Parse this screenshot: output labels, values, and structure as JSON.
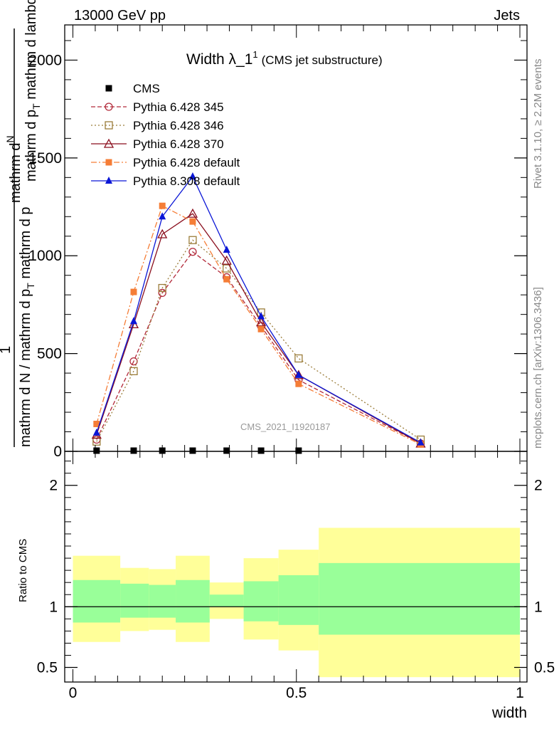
{
  "header": {
    "left": "13000 GeV pp",
    "right": "Jets"
  },
  "side_text": {
    "rivet": "Rivet 3.1.10, ≥ 2.2M events",
    "mcplots": "mcplots.cern.ch [arXiv:1306.3436]"
  },
  "chart_data": [
    {
      "type": "line",
      "title_main": "Width λ_1",
      "title_sup": "1",
      "title_sub": "(CMS jet substructure)",
      "ylabel_num_top": "mathrm d",
      "ylabel_num_N": "N",
      "ylabel_num_den": "mathrm d p",
      "ylabel_num_T": "T",
      "ylabel_num_tail": " mathrm d lambda",
      "ylabel_one": "1",
      "ylabel_den": "mathrm d N / mathrm d p",
      "ylabel_den_tail": " mathrm d p",
      "ylabel_den_T": "T",
      "watermark": "CMS_2021_I1920187",
      "xlim": [
        0,
        1
      ],
      "ylim": [
        0,
        2000
      ],
      "y_ticks": [
        0,
        500,
        1000,
        1500,
        2000
      ],
      "y_tick_labels": [
        "0",
        "500",
        "1000",
        "1500",
        "2000"
      ],
      "cms": {
        "name": "CMS",
        "color": "#000000",
        "x": [
          0.053,
          0.136,
          0.2,
          0.268,
          0.344,
          0.421,
          0.505
        ],
        "y": [
          0,
          0,
          0,
          0,
          0,
          0,
          0
        ]
      },
      "series": [
        {
          "name": "Pythia 6.428 345",
          "color": "#b22a3a",
          "dash": "6,3",
          "marker": "circle-open",
          "x": [
            0.053,
            0.136,
            0.2,
            0.268,
            0.344,
            0.421,
            0.505,
            0.778
          ],
          "y": [
            60,
            460,
            810,
            1020,
            890,
            640,
            365,
            40
          ]
        },
        {
          "name": "Pythia 6.428 346",
          "color": "#9b7d3a",
          "dash": "2,3",
          "marker": "square-open",
          "x": [
            0.053,
            0.136,
            0.2,
            0.268,
            0.344,
            0.421,
            0.505,
            0.778
          ],
          "y": [
            50,
            410,
            835,
            1080,
            935,
            710,
            475,
            60
          ]
        },
        {
          "name": "Pythia 6.428 370",
          "color": "#8b0f1e",
          "dash": "",
          "marker": "triangle-open",
          "x": [
            0.053,
            0.136,
            0.2,
            0.268,
            0.344,
            0.421,
            0.505,
            0.778
          ],
          "y": [
            85,
            650,
            1110,
            1215,
            975,
            660,
            390,
            40
          ]
        },
        {
          "name": "Pythia 6.428 default",
          "color": "#f57d36",
          "dash": "8,3,2,3",
          "marker": "square-filled",
          "x": [
            0.053,
            0.136,
            0.2,
            0.268,
            0.344,
            0.421,
            0.505,
            0.778
          ],
          "y": [
            140,
            815,
            1255,
            1175,
            880,
            625,
            345,
            35
          ]
        },
        {
          "name": "Pythia 8.308 default",
          "color": "#0a16d6",
          "dash": "",
          "marker": "triangle-filled",
          "x": [
            0.053,
            0.136,
            0.2,
            0.268,
            0.344,
            0.421,
            0.505,
            0.778
          ],
          "y": [
            95,
            665,
            1200,
            1405,
            1030,
            690,
            390,
            45
          ]
        }
      ]
    },
    {
      "type": "area",
      "ylabel": "Ratio to CMS",
      "xlabel": "width",
      "xlim": [
        0,
        1
      ],
      "ylim": [
        0.38,
        2.28
      ],
      "x_ticks": [
        0,
        0.5,
        1
      ],
      "x_tick_labels": [
        "0",
        "0.5",
        "1"
      ],
      "y_ticks": [
        0.5,
        1,
        2
      ],
      "y_tick_labels": [
        "0.5",
        "1",
        "2"
      ],
      "reference_line": 1,
      "bands": [
        {
          "x0": 0.0,
          "x1": 0.106,
          "yellow": [
            0.71,
            1.42
          ],
          "green": [
            0.87,
            1.22
          ]
        },
        {
          "x0": 0.106,
          "x1": 0.17,
          "yellow": [
            0.8,
            1.32
          ],
          "green": [
            0.91,
            1.19
          ]
        },
        {
          "x0": 0.17,
          "x1": 0.23,
          "yellow": [
            0.81,
            1.31
          ],
          "green": [
            0.91,
            1.18
          ]
        },
        {
          "x0": 0.23,
          "x1": 0.306,
          "yellow": [
            0.71,
            1.42
          ],
          "green": [
            0.87,
            1.22
          ]
        },
        {
          "x0": 0.306,
          "x1": 0.382,
          "yellow": [
            0.9,
            1.2
          ],
          "green": [
            1.0,
            1.1
          ]
        },
        {
          "x0": 0.382,
          "x1": 0.46,
          "yellow": [
            0.73,
            1.4
          ],
          "green": [
            0.88,
            1.21
          ]
        },
        {
          "x0": 0.46,
          "x1": 0.55,
          "yellow": [
            0.64,
            1.47
          ],
          "green": [
            0.85,
            1.26
          ]
        },
        {
          "x0": 0.55,
          "x1": 1.0,
          "yellow": [
            0.42,
            1.65
          ],
          "green": [
            0.77,
            1.36
          ]
        }
      ],
      "band_colors": {
        "yellow": "#ffff99",
        "green": "#99ff99"
      }
    }
  ]
}
